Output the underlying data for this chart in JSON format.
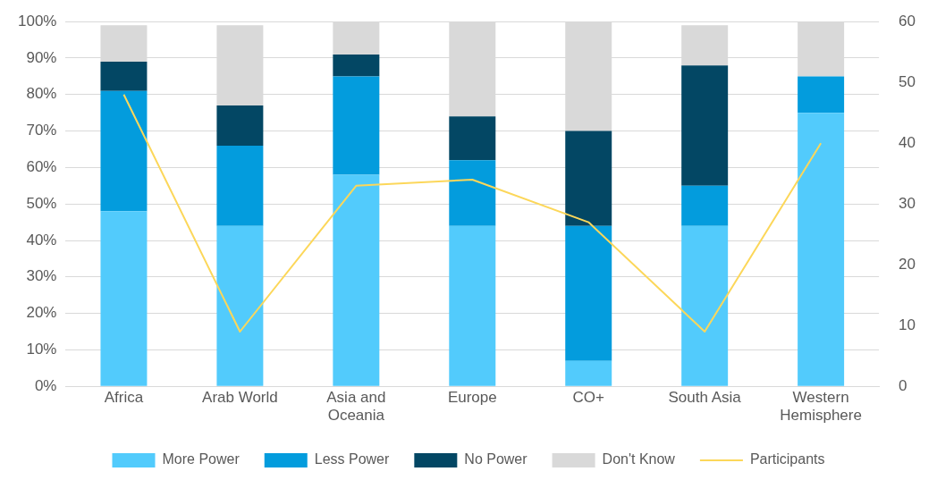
{
  "chart_data": {
    "type": "bar",
    "stacked": true,
    "categories": [
      "Africa",
      "Arab World",
      "Asia and Oceania",
      "Europe",
      "CO+",
      "South Asia",
      "Western Hemisphere"
    ],
    "series": [
      {
        "name": "More Power",
        "color": "#52cbfc",
        "values": [
          48,
          44,
          58,
          44,
          7,
          44,
          75
        ]
      },
      {
        "name": "Less Power",
        "color": "#039cdd",
        "values": [
          33,
          22,
          27,
          18,
          37,
          11,
          10
        ]
      },
      {
        "name": "No Power",
        "color": "#034764",
        "values": [
          8,
          11,
          6,
          12,
          26,
          33,
          0
        ]
      },
      {
        "name": "Don't Know",
        "color": "#d9d9d9",
        "values": [
          10,
          22,
          9,
          26,
          30,
          11,
          15
        ]
      },
      {
        "name": "Participants",
        "type": "line",
        "axis": "y2",
        "color": "#fcd75a",
        "values": [
          48,
          9,
          33,
          34,
          27,
          9,
          40
        ],
        "marker": "none"
      }
    ],
    "ylim": [
      0,
      100
    ],
    "yticks": [
      {
        "value": 0,
        "label": "0%"
      },
      {
        "value": 10,
        "label": "10%"
      },
      {
        "value": 20,
        "label": "20%"
      },
      {
        "value": 30,
        "label": "30%"
      },
      {
        "value": 40,
        "label": "40%"
      },
      {
        "value": 50,
        "label": "50%"
      },
      {
        "value": 60,
        "label": "60%"
      },
      {
        "value": 70,
        "label": "70%"
      },
      {
        "value": 80,
        "label": "80%"
      },
      {
        "value": 90,
        "label": "90%"
      },
      {
        "value": 100,
        "label": "100%"
      }
    ],
    "y2lim": [
      0,
      60
    ],
    "y2ticks": [
      0,
      10,
      20,
      30,
      40,
      50,
      60
    ],
    "grid": "y",
    "legend": "bottom"
  }
}
